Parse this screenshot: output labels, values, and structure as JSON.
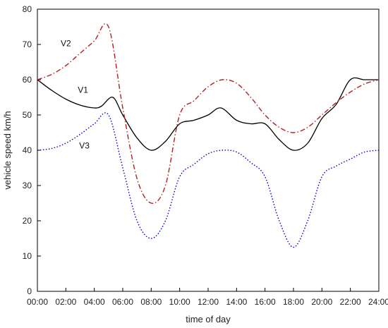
{
  "chart_data": {
    "type": "line",
    "title": "",
    "xlabel": "time of day",
    "ylabel": "vehicle speed km/h",
    "xlim": [
      0,
      24
    ],
    "ylim": [
      0,
      80
    ],
    "x_tick_labels": [
      "00:00",
      "02:00",
      "04:00",
      "06:00",
      "08:00",
      "10:00",
      "12:00",
      "14:00",
      "16:00",
      "18:00",
      "20:00",
      "22:00",
      "24:00"
    ],
    "y_tick_labels": [
      "0",
      "10",
      "20",
      "30",
      "40",
      "50",
      "60",
      "70",
      "80"
    ],
    "grid": false,
    "series": [
      {
        "name": "V1",
        "color": "#000000",
        "dash": "solid",
        "points": [
          [
            0,
            60
          ],
          [
            1,
            57
          ],
          [
            2,
            54.5
          ],
          [
            3,
            52.8
          ],
          [
            4,
            52
          ],
          [
            4.5,
            52.5
          ],
          [
            5.3,
            55
          ],
          [
            6,
            50
          ],
          [
            7,
            43.5
          ],
          [
            8,
            40
          ],
          [
            9,
            42.5
          ],
          [
            10,
            47.5
          ],
          [
            11,
            48.5
          ],
          [
            12,
            50
          ],
          [
            12.9,
            52
          ],
          [
            14,
            48.5
          ],
          [
            15,
            47.5
          ],
          [
            16,
            47.5
          ],
          [
            17,
            43
          ],
          [
            18,
            40
          ],
          [
            19,
            42
          ],
          [
            20,
            49
          ],
          [
            21,
            53
          ],
          [
            22,
            60
          ],
          [
            23,
            60
          ],
          [
            24,
            60
          ]
        ]
      },
      {
        "name": "V2",
        "color": "#b22222",
        "dash": "dashdot",
        "points": [
          [
            0,
            60
          ],
          [
            1,
            61.5
          ],
          [
            2,
            64
          ],
          [
            3,
            67.5
          ],
          [
            4,
            71
          ],
          [
            5,
            75
          ],
          [
            6,
            52
          ],
          [
            7,
            32
          ],
          [
            8,
            25
          ],
          [
            9,
            30
          ],
          [
            10,
            50
          ],
          [
            11,
            54
          ],
          [
            12,
            58
          ],
          [
            13,
            60
          ],
          [
            14,
            59
          ],
          [
            15,
            55
          ],
          [
            16,
            50
          ],
          [
            17,
            46.5
          ],
          [
            18,
            45
          ],
          [
            19,
            46.5
          ],
          [
            20,
            50
          ],
          [
            21,
            53.5
          ],
          [
            22,
            56.5
          ],
          [
            23,
            58.8
          ],
          [
            24,
            60
          ]
        ]
      },
      {
        "name": "V3",
        "color": "#0000cc",
        "dash": "dotted",
        "points": [
          [
            0,
            40
          ],
          [
            1,
            40.5
          ],
          [
            2,
            42
          ],
          [
            3,
            44.5
          ],
          [
            4,
            47.5
          ],
          [
            5,
            50
          ],
          [
            6,
            35
          ],
          [
            7,
            20
          ],
          [
            8,
            15
          ],
          [
            9,
            20
          ],
          [
            10,
            32.5
          ],
          [
            11,
            36
          ],
          [
            12,
            39
          ],
          [
            13,
            40
          ],
          [
            14,
            39.5
          ],
          [
            15,
            36.5
          ],
          [
            16,
            32.5
          ],
          [
            17,
            20
          ],
          [
            18,
            12.5
          ],
          [
            19,
            20
          ],
          [
            20,
            32.5
          ],
          [
            21,
            35.5
          ],
          [
            22,
            37.5
          ],
          [
            23,
            39.5
          ],
          [
            24,
            40
          ]
        ]
      }
    ],
    "annotations": [
      {
        "text": "V1",
        "x": 3.2,
        "y": 56.3
      },
      {
        "text": "V2",
        "x": 2.0,
        "y": 69.5
      },
      {
        "text": "V3",
        "x": 3.3,
        "y": 40.5
      }
    ]
  }
}
